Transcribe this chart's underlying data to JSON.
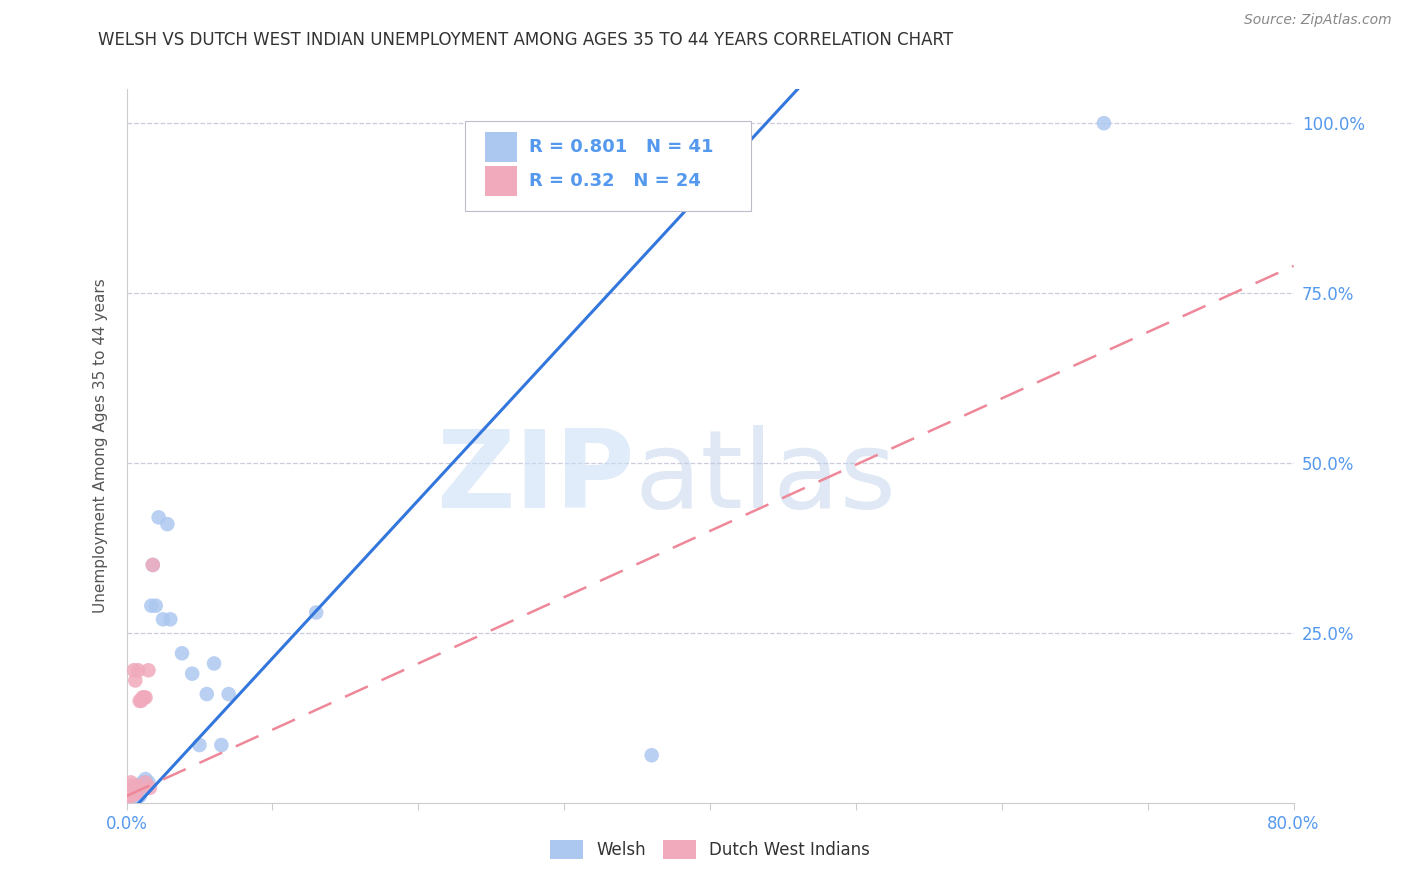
{
  "title": "WELSH VS DUTCH WEST INDIAN UNEMPLOYMENT AMONG AGES 35 TO 44 YEARS CORRELATION CHART",
  "source": "Source: ZipAtlas.com",
  "ylabel": "Unemployment Among Ages 35 to 44 years",
  "watermark_zip": "ZIP",
  "watermark_atlas": "atlas",
  "welsh_R": 0.801,
  "welsh_N": 41,
  "dwi_R": 0.32,
  "dwi_N": 24,
  "welsh_color": "#adc8f0",
  "dwi_color": "#f0aabb",
  "welsh_line_color": "#3377dd",
  "dwi_line_color": "#ee8899",
  "grid_color": "#ccccdd",
  "title_color": "#333333",
  "axis_label_color": "#555555",
  "tick_color": "#5599ee",
  "legend_label_welsh": "Welsh",
  "legend_label_dwi": "Dutch West Indians",
  "xlim": [
    0.0,
    0.8
  ],
  "ylim": [
    0.0,
    1.05
  ],
  "welsh_x": [
    0.001,
    0.001,
    0.002,
    0.002,
    0.003,
    0.003,
    0.003,
    0.004,
    0.004,
    0.005,
    0.005,
    0.005,
    0.006,
    0.006,
    0.007,
    0.007,
    0.008,
    0.009,
    0.009,
    0.01,
    0.011,
    0.012,
    0.013,
    0.015,
    0.017,
    0.018,
    0.02,
    0.022,
    0.025,
    0.028,
    0.03,
    0.038,
    0.045,
    0.05,
    0.055,
    0.06,
    0.065,
    0.07,
    0.13,
    0.36,
    0.67
  ],
  "welsh_y": [
    0.005,
    0.01,
    0.005,
    0.015,
    0.008,
    0.01,
    0.02,
    0.01,
    0.015,
    0.008,
    0.012,
    0.018,
    0.01,
    0.015,
    0.01,
    0.018,
    0.015,
    0.01,
    0.015,
    0.018,
    0.03,
    0.03,
    0.035,
    0.03,
    0.29,
    0.35,
    0.29,
    0.42,
    0.27,
    0.41,
    0.27,
    0.22,
    0.19,
    0.085,
    0.16,
    0.205,
    0.085,
    0.16,
    0.28,
    0.07,
    1.0
  ],
  "dwi_x": [
    0.001,
    0.001,
    0.002,
    0.002,
    0.003,
    0.003,
    0.004,
    0.004,
    0.005,
    0.005,
    0.006,
    0.006,
    0.007,
    0.007,
    0.008,
    0.009,
    0.01,
    0.011,
    0.012,
    0.013,
    0.013,
    0.015,
    0.016,
    0.018
  ],
  "dwi_y": [
    0.005,
    0.008,
    0.01,
    0.015,
    0.015,
    0.03,
    0.015,
    0.025,
    0.012,
    0.195,
    0.02,
    0.18,
    0.025,
    0.015,
    0.195,
    0.15,
    0.15,
    0.155,
    0.155,
    0.03,
    0.155,
    0.195,
    0.022,
    0.35
  ],
  "welsh_line_x0": 0.0,
  "welsh_line_x1": 0.46,
  "welsh_line_y0": -0.02,
  "welsh_line_y1": 1.05,
  "dwi_line_x0": 0.0,
  "dwi_line_x1": 0.8,
  "dwi_line_y0": 0.01,
  "dwi_line_y1": 0.79
}
